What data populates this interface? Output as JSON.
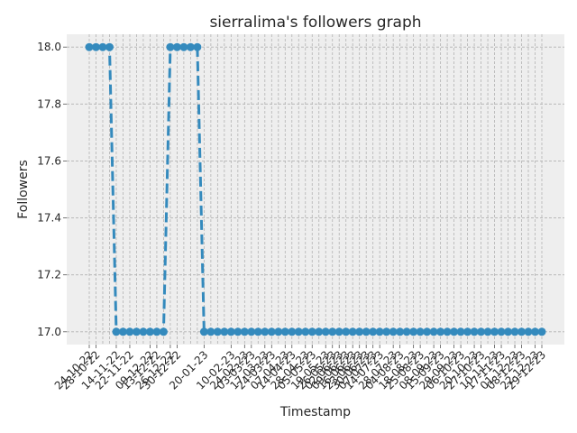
{
  "chart_data": {
    "type": "line",
    "title": "sierralima's followers graph",
    "xlabel": "Timestamp",
    "ylabel": "Followers",
    "ylim": [
      16.955,
      18.045
    ],
    "yticks": [
      "17.0",
      "17.2",
      "17.4",
      "17.6",
      "17.8",
      "18.0"
    ],
    "ytick_values": [
      17.0,
      17.2,
      17.4,
      17.6,
      17.8,
      18.0
    ],
    "grid": true,
    "line_style": "dashed",
    "marker": "circle",
    "color": "#348ABD",
    "x": [
      "24-10-22",
      "28-10-22",
      "03-11-22",
      "07-11-22",
      "14-11-22",
      "18-11-22",
      "22-11-22",
      "28-11-22",
      "05-12-22",
      "09-12-22",
      "13-12-22",
      "19-12-22",
      "26-12-22",
      "30-12-22",
      "03-01-23",
      "09-01-23",
      "16-01-23",
      "20-01-23",
      "24-01-23",
      "30-01-23",
      "06-02-23",
      "10-02-23",
      "17-02-23",
      "24-02-23",
      "03-03-23",
      "10-03-23",
      "17-03-23",
      "24-03-23",
      "31-03-23",
      "07-04-23",
      "14-04-23",
      "21-04-23",
      "28-04-23",
      "05-05-23",
      "12-05-23",
      "19-05-23",
      "26-05-23",
      "02-06-23",
      "09-06-23",
      "16-06-23",
      "23-06-23",
      "30-06-23",
      "07-07-23",
      "14-07-23",
      "21-07-23",
      "28-07-23",
      "04-08-23",
      "11-08-23",
      "18-08-23",
      "25-08-23",
      "01-09-23",
      "08-09-23",
      "15-09-23",
      "22-09-23",
      "29-09-23",
      "06-10-23",
      "13-10-23",
      "20-10-23",
      "27-10-23",
      "03-11-23",
      "10-11-23",
      "17-11-23",
      "24-11-23",
      "01-12-23",
      "08-12-23",
      "15-12-23",
      "22-12-23",
      "29-12-23"
    ],
    "xtick_labels": [
      "24-10-22",
      "28-10-22",
      "14-11-22",
      "22-11-22",
      "09-12-22",
      "13-12-22",
      "26-12-22",
      "30-12-22",
      "13-01-23",
      "20-01-23",
      "03-02-23",
      "10-02-23",
      "24-02-23",
      "03-03-23",
      "17-03-23",
      "24-03-23",
      "07-04-23",
      "14-04-23",
      "28-04-23",
      "05-05-23",
      "19-05-23",
      "26-05-23",
      "02-06-23",
      "09-06-23",
      "16-06-23",
      "23-06-23",
      "30-06-23",
      "07-07-23",
      "14-07-23",
      "28-07-23",
      "04-08-23",
      "18-08-23",
      "25-08-23",
      "08-09-23",
      "15-09-23",
      "29-09-23",
      "06-10-23",
      "20-10-23",
      "27-10-23",
      "10-11-23",
      "17-11-23",
      "01-12-23",
      "08-12-23",
      "22-12-23",
      "29-12-23"
    ],
    "values": [
      18,
      18,
      18,
      18,
      17,
      17,
      17,
      17,
      17,
      17,
      17,
      17,
      18,
      18,
      18,
      18,
      18,
      17,
      17,
      17,
      17,
      17,
      17,
      17,
      17,
      17,
      17,
      17,
      17,
      17,
      17,
      17,
      17,
      17,
      17,
      17,
      17,
      17,
      17,
      17,
      17,
      17,
      17,
      17,
      17,
      17,
      17,
      17,
      17,
      17,
      17,
      17,
      17,
      17,
      17,
      17,
      17,
      17,
      17,
      17,
      17,
      17,
      17,
      17,
      17,
      17,
      17,
      17
    ]
  }
}
